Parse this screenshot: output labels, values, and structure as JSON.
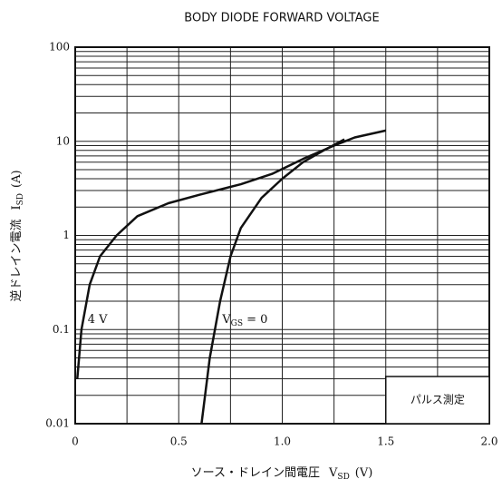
{
  "chart_data": {
    "type": "line",
    "title": "BODY DIODE FORWARD VOLTAGE",
    "xlabel": "ソース・ドレイン間電圧",
    "xlabel_symbol": "V",
    "xlabel_sub": "SD",
    "xlabel_unit": "(V)",
    "ylabel": "逆ドレイン電流",
    "ylabel_symbol": "I",
    "ylabel_sub": "SD",
    "ylabel_unit": "(A)",
    "xlim": [
      0,
      2
    ],
    "xticks": [
      0,
      0.5,
      {
        "value": 1,
        "label": "1.0"
      },
      1.5,
      {
        "value": 2,
        "label": "2.0"
      }
    ],
    "minor_xticks": [
      0.25,
      0.75,
      1.25,
      1.75
    ],
    "ylim": [
      0.01,
      100
    ],
    "ylog": true,
    "yticks": [
      0.01,
      0.1,
      1,
      10,
      100
    ],
    "minor_yticks": [
      0.02,
      0.03,
      0.04,
      0.05,
      0.06,
      0.07,
      0.08,
      0.09,
      0.2,
      0.3,
      0.4,
      0.5,
      0.6,
      0.7,
      0.8,
      0.9,
      2,
      3,
      4,
      5,
      6,
      7,
      8,
      9,
      20,
      30,
      40,
      50,
      60,
      70,
      80,
      90
    ],
    "grid": true,
    "series": [
      {
        "name": "4 V",
        "color": "#111111",
        "x": [
          0.01,
          0.03,
          0.07,
          0.12,
          0.2,
          0.3,
          0.45,
          0.6,
          0.8,
          0.95,
          1.1,
          1.25,
          1.35,
          1.5
        ],
        "values": [
          0.03,
          0.1,
          0.3,
          0.6,
          1,
          1.6,
          2.2,
          2.7,
          3.5,
          4.5,
          6.5,
          9,
          11,
          13
        ]
      },
      {
        "name": "V",
        "name_sub": "GS",
        "name_rest": " = 0",
        "color": "#111111",
        "x": [
          0.61,
          0.65,
          0.7,
          0.75,
          0.8,
          0.9,
          1.0,
          1.1,
          1.2,
          1.3
        ],
        "values": [
          0.01,
          0.05,
          0.2,
          0.6,
          1.2,
          2.5,
          4,
          6,
          8,
          10.5
        ]
      }
    ],
    "annotation": "パルス測定"
  }
}
